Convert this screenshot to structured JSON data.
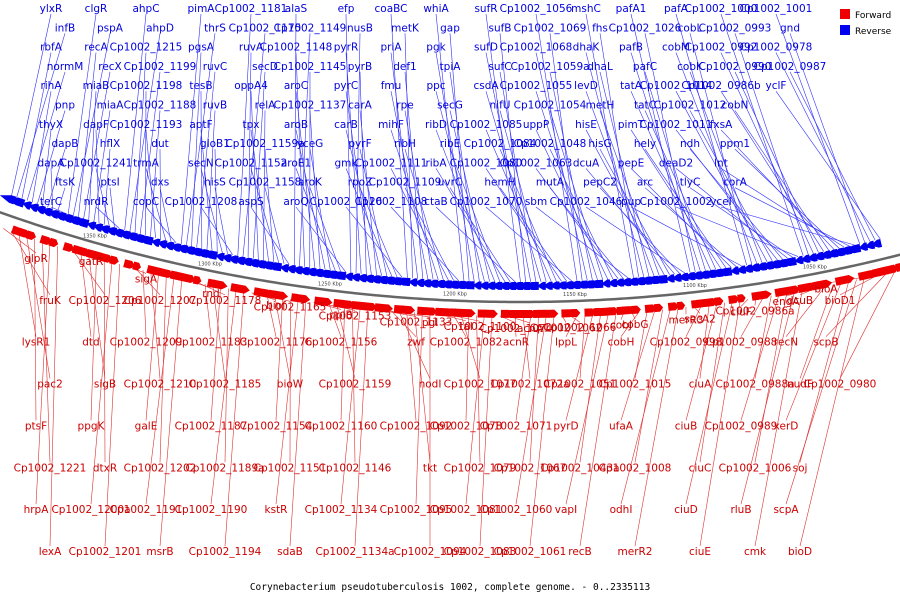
{
  "caption": "Corynebacterium pseudotuberculosis 1002, complete genome. - 0..2335113",
  "legend": [
    {
      "label": "Forward",
      "color": "#ee0000"
    },
    {
      "label": "Reverse",
      "color": "#0000ee"
    }
  ],
  "axis_ticks": [
    "1350 Kbp",
    "1300 Kbp",
    "1250 Kbp",
    "1200 Kbp",
    "1150 Kbp",
    "1100 Kbp",
    "1050 Kbp"
  ],
  "reverse_genes": [
    "ylxR",
    "infB",
    "rbfA",
    "normM",
    "rihA",
    "pnp",
    "thyX",
    "dapB",
    "dapA",
    "ftsK",
    "terC",
    "clgR",
    "pspA",
    "recA",
    "recX",
    "miaB",
    "miaA",
    "dapF",
    "hflX",
    "Cp1002_1241",
    "ptsI",
    "nrdR",
    "ahpC",
    "ahpD",
    "Cp1002_1215",
    "Cp1002_1199",
    "Cp1002_1198",
    "Cp1002_1188",
    "Cp1002_1193",
    "dut",
    "trmA",
    "dxs",
    "copC",
    "pimA",
    "thrS",
    "pgsA",
    "ruvC",
    "tesB",
    "ruvB",
    "aptF",
    "gloB1",
    "secN",
    "hisS",
    "Cp1002_1208",
    "Cp1002_1181",
    "Cp1002_1175",
    "ruvA",
    "secD",
    "oppA4",
    "relA",
    "tpx",
    "Cp1002_1159a",
    "Cp1002_1152",
    "Cp1002_1158",
    "aspS",
    "alaS",
    "Cp1002_1149",
    "Cp1002_1148",
    "Cp1002_1145",
    "aroC",
    "Cp1002_1137",
    "aroB",
    "yceG",
    "aroE1",
    "aroK",
    "aroQ",
    "efp",
    "nusB",
    "pyrR",
    "pyrB",
    "pyrC",
    "carA",
    "carB",
    "pyrF",
    "gmk",
    "rpoZ",
    "Cp1002_1126",
    "coaBC",
    "metK",
    "priA",
    "def1",
    "fmu",
    "rpe",
    "mihF",
    "ribH",
    "Cp1002_1111",
    "Cp1002_1109",
    "Cp1002_1108",
    "whiA",
    "gap",
    "pgk",
    "tpiA",
    "ppc",
    "secG",
    "ribD",
    "ribE",
    "ribA",
    "uvrC",
    "ctaB",
    "sufR",
    "sufB",
    "sufD",
    "sufC",
    "csdA",
    "nifU",
    "Cp1002_1085",
    "Cp1002_1084",
    "Cp1002_1080",
    "hemH",
    "Cp1002_1070",
    "Cp1002_1056",
    "Cp1002_1069",
    "Cp1002_1068",
    "Cp1002_1059a",
    "Cp1002_1055",
    "Cp1002_1054",
    "uppP",
    "Cp1002_1048",
    "Cp1002_1063",
    "mutA",
    "sbm",
    "mshC",
    "fhs",
    "dhaK",
    "dhaL",
    "levD",
    "metH",
    "hisE",
    "hisG",
    "dcuA",
    "pepC2",
    "Cp1002_1046",
    "pafA1",
    "Cp1002_1026",
    "pafB",
    "pafC",
    "tatA",
    "tatC",
    "pimT",
    "hely",
    "pepE",
    "arc",
    "pup",
    "pafA",
    "cobL",
    "cobM",
    "cobK",
    "Cp1002_1014",
    "Cp1002_1012",
    "Cp1002_1011",
    "ndh",
    "deaD2",
    "tlyC",
    "Cp1002_1002",
    "Cp1002_1000",
    "Cp1002_0993",
    "Cp1002_0992",
    "Cp1002_0990",
    "Cp1002_0986b",
    "cobN",
    "fxsA",
    "ppm1",
    "lnt",
    "corA",
    "yceI",
    "Cp1002_1001",
    "gnd",
    "Cp1002_0978",
    "Cp1002_0987",
    "yclF"
  ],
  "forward_genes": [
    "glpR",
    "fruK",
    "lysR1",
    "pac2",
    "ptsF",
    "Cp1002_1221",
    "hrpA",
    "lexA",
    "gatR",
    "Cp1002_1206",
    "dtd",
    "sigB",
    "ppgK",
    "dtxR",
    "Cp1002_1200a",
    "Cp1002_1201",
    "sigA",
    "Cp1002_1207",
    "Cp1002_1209",
    "Cp1002_1210",
    "galE",
    "Cp1002_1202",
    "Cp1002_1191",
    "msrB",
    "rnd",
    "Cp1002_1178",
    "Cp1002_1183",
    "Cp1002_1185",
    "Cp1002_1187",
    "Cp1002_1189a",
    "Cp1002_1190",
    "Cp1002_1194",
    "biof",
    "Cp1002_1165",
    "Cp1002_1176",
    "bioW",
    "Cp1002_1154",
    "Cp1002_1151",
    "kstR",
    "sdaB",
    "ppiB",
    "Cp1002_1153",
    "Cp1002_1156",
    "Cp1002_1159",
    "Cp1002_1160",
    "Cp1002_1146",
    "Cp1002_1134",
    "Cp1002_1134a",
    "Cp1002_1133",
    "pgl",
    "zwf",
    "nodI",
    "Cp1002_1092",
    "tkt",
    "Cp1002_1095",
    "Cp1002_1094",
    "tal",
    "Cp1002_1100",
    "Cp1002_1082",
    "Cp1002_1077",
    "Cp1002_1078",
    "Cp1002_1079",
    "Cp1002_1081",
    "Cp1002_1083",
    "Cp1002_1074",
    "acnA",
    "acnR",
    "Cp1002_1072a",
    "Cp1002_1071",
    "Cp1002_1067",
    "Cp1002_1060",
    "Cp1002_1061",
    "Cp1002_1062",
    "Cp1002_1066",
    "lppL",
    "Cp1002_1051",
    "pyrD",
    "Cp1002_1043a",
    "vapI",
    "recB",
    "cobJ",
    "cobG",
    "cobH",
    "Cp1002_1015",
    "ufaA",
    "Cp1002_1008",
    "odhI",
    "merR2",
    "merR3",
    "secA2",
    "Cp1002_0998",
    "ciuA",
    "ciuB",
    "ciuC",
    "ciuD",
    "ciuE",
    "ciuF",
    "Cp1002_0986a",
    "Cp1002_0988",
    "Cp1002_0988a",
    "Cp1002_0989",
    "Cp1002_1006",
    "rluB",
    "cmk",
    "engA",
    "dcuB",
    "recN",
    "nudF",
    "xerD",
    "soj",
    "scpA",
    "bioD",
    "bioA",
    "bioD1",
    "scpB",
    "Cp1002_0980"
  ]
}
